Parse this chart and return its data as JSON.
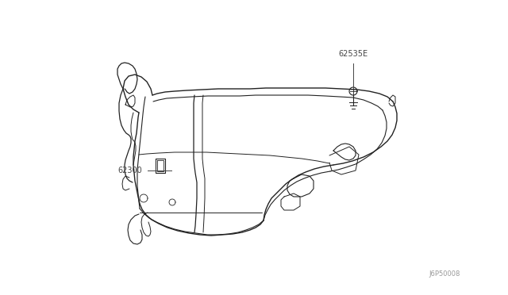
{
  "background_color": "#ffffff",
  "text_color": "#444444",
  "part_color": "#222222",
  "watermark": "J6P50008",
  "label_62535E": "62535E",
  "label_62300": "62300",
  "figsize": [
    6.4,
    3.72
  ],
  "dpi": 100
}
